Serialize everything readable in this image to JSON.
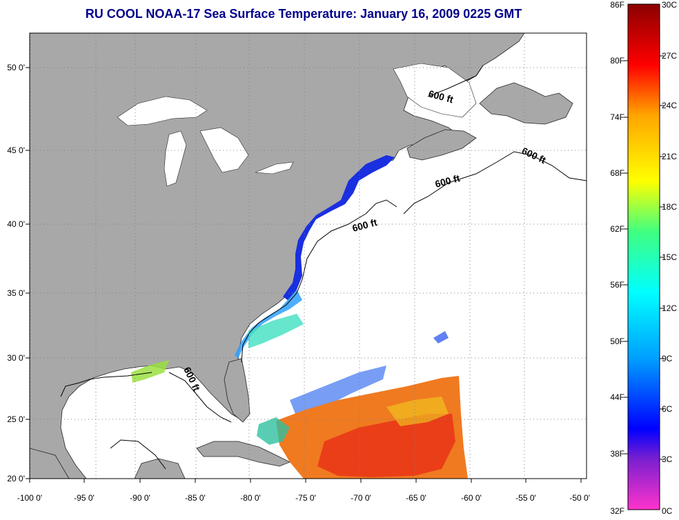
{
  "title": "RU COOL  NOAA-17  Sea Surface Temperature:  January 16, 2009 0225 GMT",
  "map": {
    "x_ticks": [
      "-100 0'",
      "-95 0'",
      "-90 0'",
      "-85 0'",
      "-80 0'",
      "-75 0'",
      "-70 0'",
      "-65 0'",
      "-60 0'",
      "-55 0'",
      "-50 0'"
    ],
    "y_ticks": [
      "50 0'",
      "45 0'",
      "40 0'",
      "35 0'",
      "30 0'",
      "25 0'",
      "20 0'"
    ],
    "contour_labels": [
      "600 ft",
      "600 ft",
      "600 ft",
      "600 ft",
      "600 ft"
    ],
    "colors": {
      "land": "#a8a8a8",
      "ocean_nodata": "#ffffff",
      "grid": "#7f7f7f"
    }
  },
  "colorbar": {
    "left_labels": [
      "86F",
      "80F",
      "74F",
      "68F",
      "62F",
      "56F",
      "50F",
      "44F",
      "38F",
      "32F"
    ],
    "right_labels": [
      "30C",
      "27C",
      "24C",
      "21C",
      "18C",
      "15C",
      "12C",
      "9C",
      "6C",
      "3C",
      "0C"
    ],
    "gradient": [
      "#ff33cc",
      "#7a1fd0",
      "#0000ff",
      "#00a0ff",
      "#00ffff",
      "#40ff80",
      "#ffff00",
      "#ffa500",
      "#ff0000",
      "#8b0000"
    ]
  }
}
